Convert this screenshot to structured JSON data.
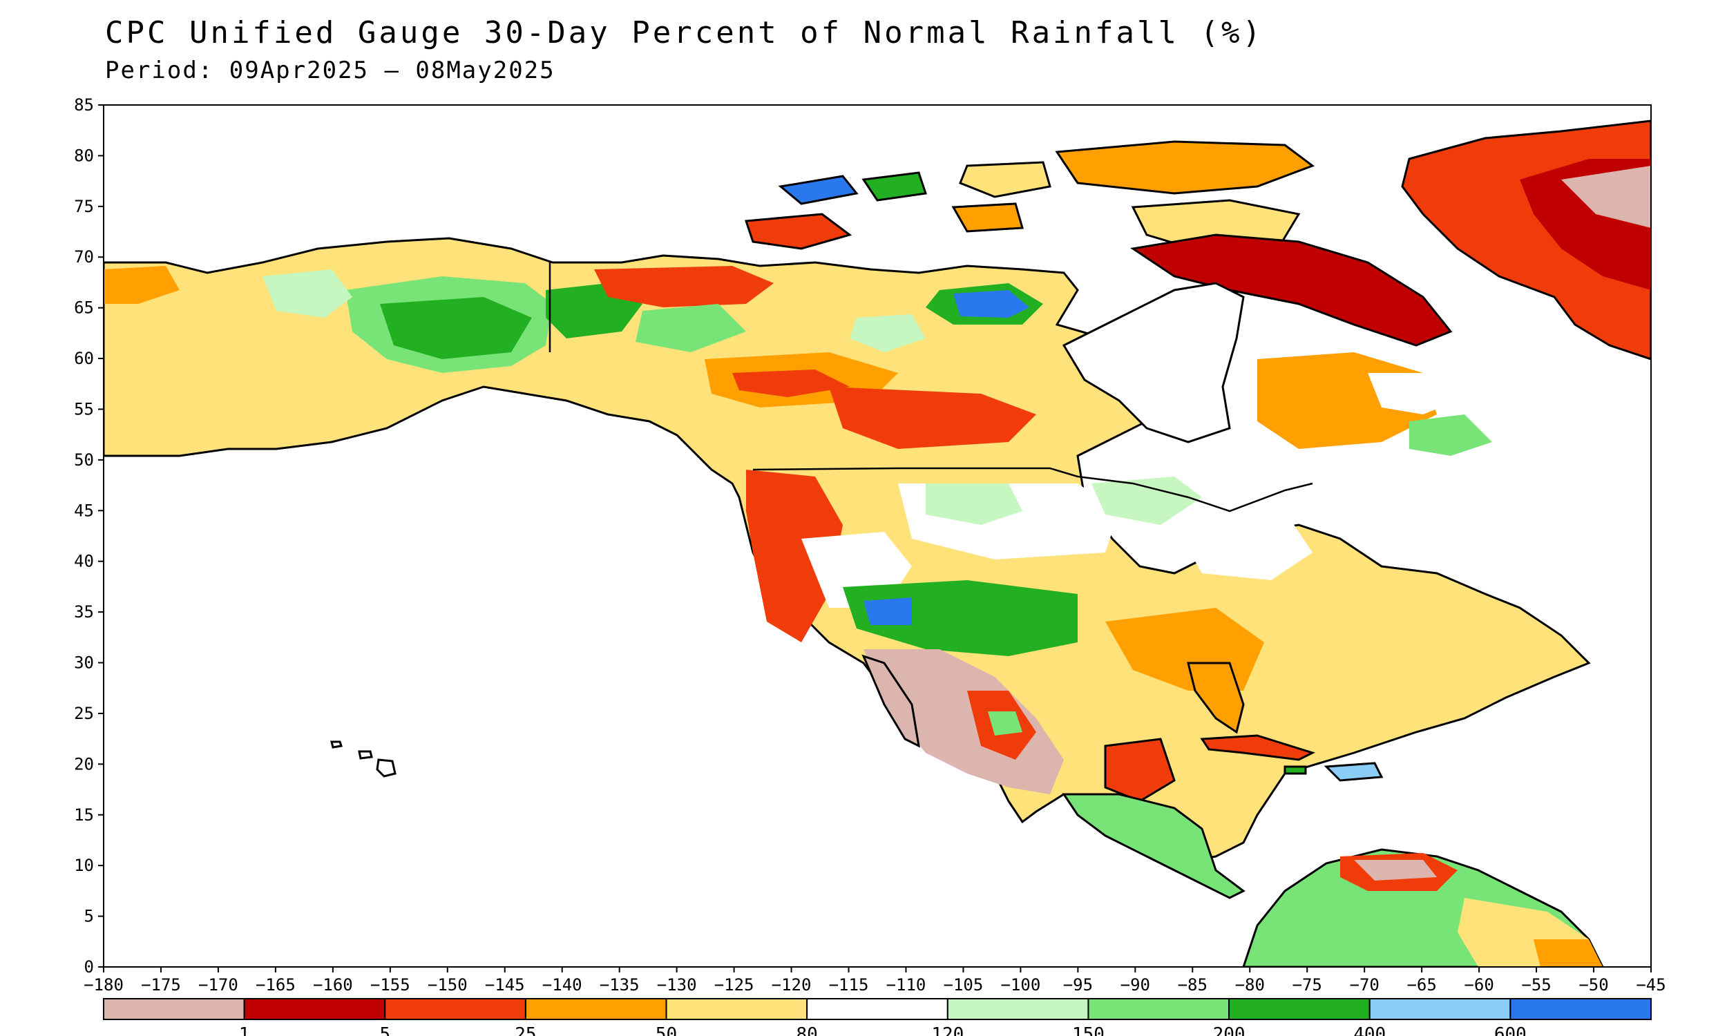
{
  "title": "CPC Unified Gauge 30-Day Percent of Normal Rainfall (%)",
  "subtitle": "Period: 09Apr2025 – 08May2025",
  "axes": {
    "lon": [
      -180,
      -175,
      -170,
      -165,
      -160,
      -155,
      -150,
      -145,
      -140,
      -135,
      -130,
      -125,
      -120,
      -115,
      -110,
      -105,
      -100,
      -95,
      -90,
      -85,
      -80,
      -75,
      -70,
      -65,
      -60,
      -55,
      -50,
      -45
    ],
    "lat": [
      0,
      5,
      10,
      15,
      20,
      25,
      30,
      35,
      40,
      45,
      50,
      55,
      60,
      65,
      70,
      75,
      80,
      85
    ],
    "lon_range": [
      -180,
      -45
    ],
    "lat_range": [
      0,
      85
    ]
  },
  "colorbar": {
    "colors": [
      "#dcb6ae",
      "#c00000",
      "#f03c0a",
      "#ffa000",
      "#ffe27a",
      "#ffffff",
      "#c6f7c0",
      "#78e478",
      "#22b022",
      "#8ccdf7",
      "#2a78ee"
    ],
    "labels": [
      "1",
      "5",
      "25",
      "50",
      "80",
      "120",
      "150",
      "200",
      "400",
      "600"
    ]
  }
}
